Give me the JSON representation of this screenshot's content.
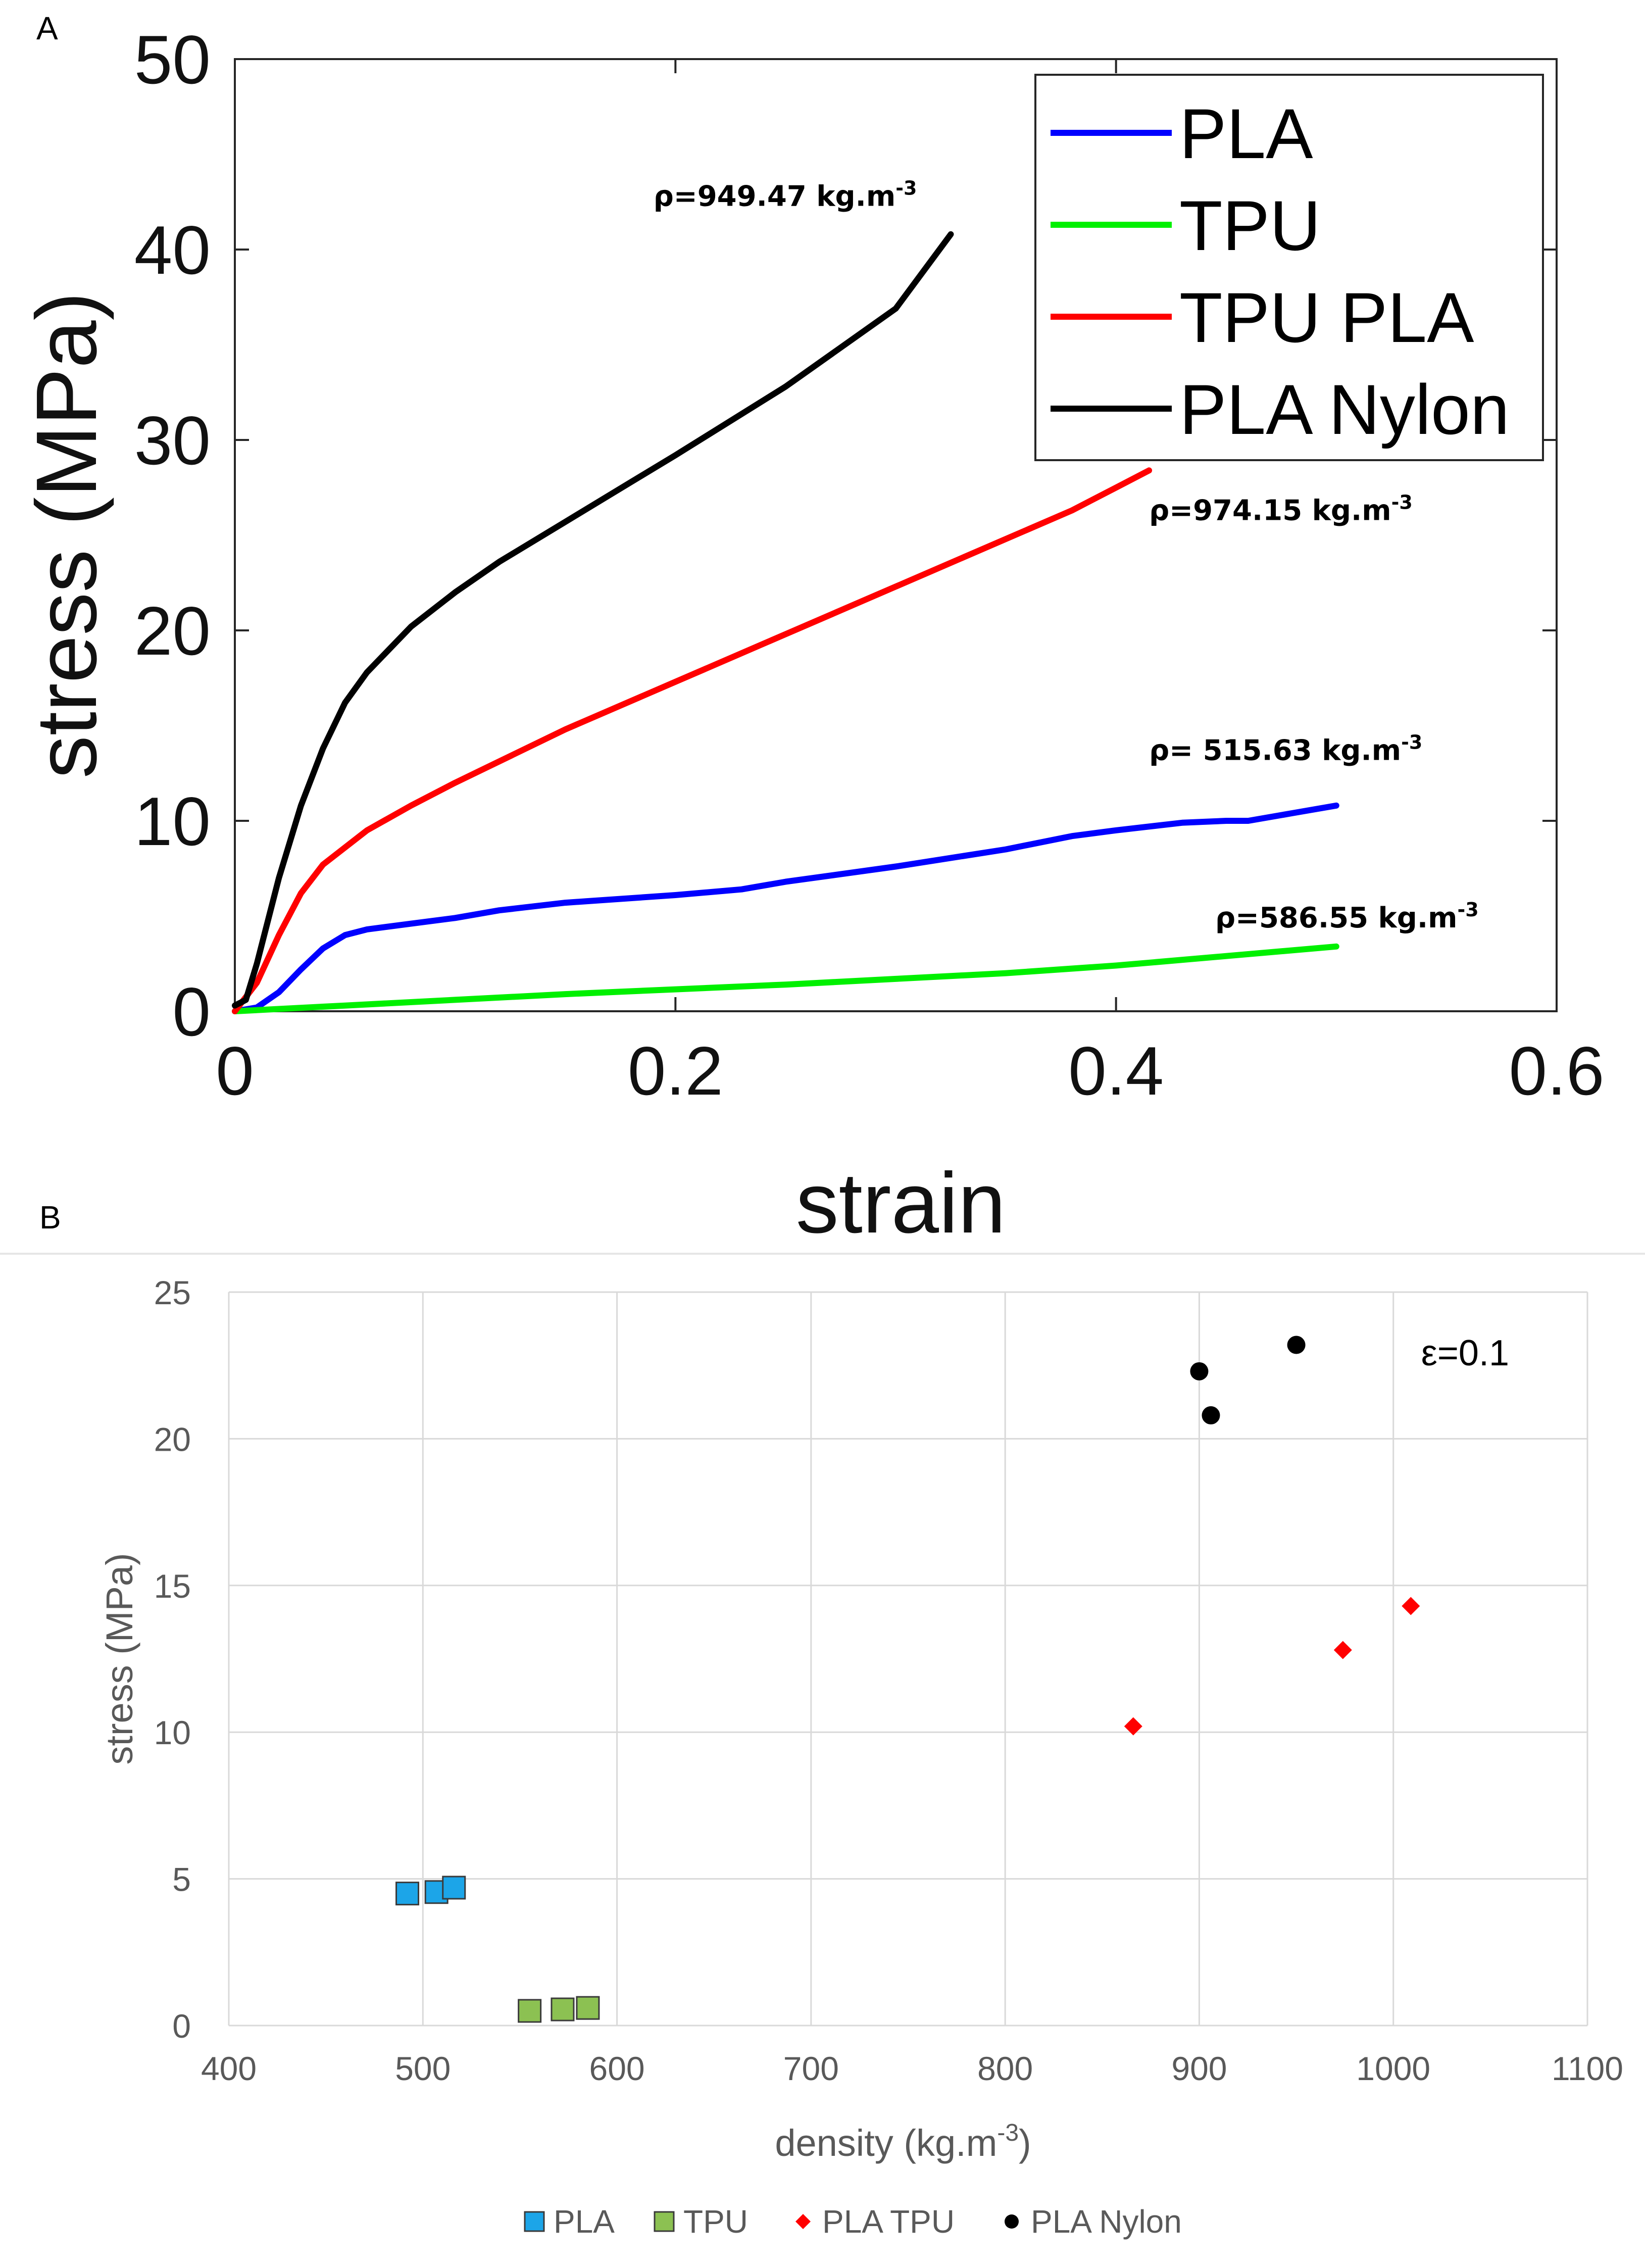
{
  "panels": {
    "a_label": "A",
    "b_label": "B"
  },
  "chart_data": [
    {
      "type": "line",
      "xlabel": "strain",
      "ylabel": "stress (MPa)",
      "xlim": [
        0,
        0.6
      ],
      "ylim": [
        0,
        50
      ],
      "xticks": [
        0,
        0.2,
        0.4,
        0.6
      ],
      "yticks": [
        0,
        10,
        20,
        30,
        40,
        50
      ],
      "xtick_labels": [
        "0",
        "0.2",
        "0.4",
        "0.6"
      ],
      "ytick_labels": [
        "0",
        "10",
        "20",
        "30",
        "40",
        "50"
      ],
      "legend_position": "top-right",
      "series": [
        {
          "name": "PLA",
          "color": "#0000FF",
          "x": [
            0,
            0.01,
            0.02,
            0.03,
            0.04,
            0.05,
            0.06,
            0.08,
            0.1,
            0.12,
            0.15,
            0.2,
            0.23,
            0.25,
            0.3,
            0.35,
            0.38,
            0.4,
            0.43,
            0.45,
            0.46,
            0.48,
            0.5
          ],
          "y": [
            0,
            0.2,
            1.0,
            2.2,
            3.3,
            4.0,
            4.3,
            4.6,
            4.9,
            5.3,
            5.7,
            6.1,
            6.4,
            6.8,
            7.6,
            8.5,
            9.2,
            9.5,
            9.9,
            10.0,
            10.0,
            10.4,
            10.8
          ]
        },
        {
          "name": "TPU",
          "color": "#00F000",
          "x": [
            0,
            0.05,
            0.1,
            0.15,
            0.2,
            0.25,
            0.3,
            0.35,
            0.4,
            0.45,
            0.5
          ],
          "y": [
            0,
            0.3,
            0.6,
            0.9,
            1.15,
            1.4,
            1.7,
            2.0,
            2.4,
            2.9,
            3.4
          ]
        },
        {
          "name": "TPU PLA",
          "color": "#FF0000",
          "x": [
            0,
            0.01,
            0.02,
            0.03,
            0.04,
            0.06,
            0.08,
            0.1,
            0.15,
            0.2,
            0.25,
            0.3,
            0.35,
            0.38,
            0.4,
            0.415
          ],
          "y": [
            0,
            1.5,
            4.0,
            6.2,
            7.7,
            9.5,
            10.8,
            12.0,
            14.8,
            17.3,
            19.8,
            22.3,
            24.8,
            26.3,
            27.5,
            28.4
          ]
        },
        {
          "name": "PLA Nylon",
          "color": "#000000",
          "x": [
            0,
            0.005,
            0.01,
            0.02,
            0.03,
            0.04,
            0.05,
            0.06,
            0.08,
            0.1,
            0.12,
            0.15,
            0.18,
            0.2,
            0.25,
            0.3,
            0.325
          ],
          "y": [
            0.3,
            0.6,
            2.5,
            7.0,
            10.8,
            13.8,
            16.2,
            17.8,
            20.2,
            22.0,
            23.6,
            25.7,
            27.8,
            29.2,
            32.8,
            36.9,
            40.8
          ]
        }
      ],
      "annotations": [
        {
          "text": "ρ=949.47 kg.m",
          "sup": "-3",
          "series": "PLA Nylon",
          "x": 0.19,
          "y": 42.3
        },
        {
          "text": "ρ=974.15 kg.m",
          "sup": "-3",
          "series": "TPU PLA",
          "x": 0.415,
          "y": 25.8
        },
        {
          "text": "ρ= 515.63 kg.m",
          "sup": "-3",
          "series": "PLA",
          "x": 0.415,
          "y": 13.2
        },
        {
          "text": "ρ=586.55 kg.m",
          "sup": "-3",
          "series": "TPU",
          "x": 0.445,
          "y": 4.4
        }
      ]
    },
    {
      "type": "scatter",
      "xlabel": "density (kg.m",
      "xlabel_sup": "-3",
      "xlabel_end": ")",
      "ylabel": "stress (MPa)",
      "xlim": [
        400,
        1100
      ],
      "ylim": [
        0,
        25
      ],
      "xticks": [
        400,
        500,
        600,
        700,
        800,
        900,
        1000,
        1100
      ],
      "yticks": [
        0,
        5,
        10,
        15,
        20,
        25
      ],
      "xtick_labels": [
        "400",
        "500",
        "600",
        "700",
        "800",
        "900",
        "1000",
        "1100"
      ],
      "ytick_labels": [
        "0",
        "5",
        "10",
        "15",
        "20",
        "25"
      ],
      "grid": true,
      "legend_position": "bottom",
      "annotation": "ε=0.1",
      "series": [
        {
          "name": "PLA",
          "marker": "square",
          "color": "#1CA5E8",
          "x": [
            492,
            507,
            516
          ],
          "y": [
            4.5,
            4.55,
            4.7
          ]
        },
        {
          "name": "TPU",
          "marker": "square",
          "color": "#8CC152",
          "x": [
            555,
            572,
            585
          ],
          "y": [
            0.5,
            0.55,
            0.6
          ]
        },
        {
          "name": "PLA TPU",
          "marker": "diamond",
          "color": "#FF0000",
          "x": [
            866,
            974,
            1009
          ],
          "y": [
            10.2,
            12.8,
            14.3
          ]
        },
        {
          "name": "PLA Nylon",
          "marker": "circle",
          "color": "#000000",
          "x": [
            900,
            906,
            950
          ],
          "y": [
            22.3,
            20.8,
            23.2
          ]
        }
      ]
    }
  ]
}
